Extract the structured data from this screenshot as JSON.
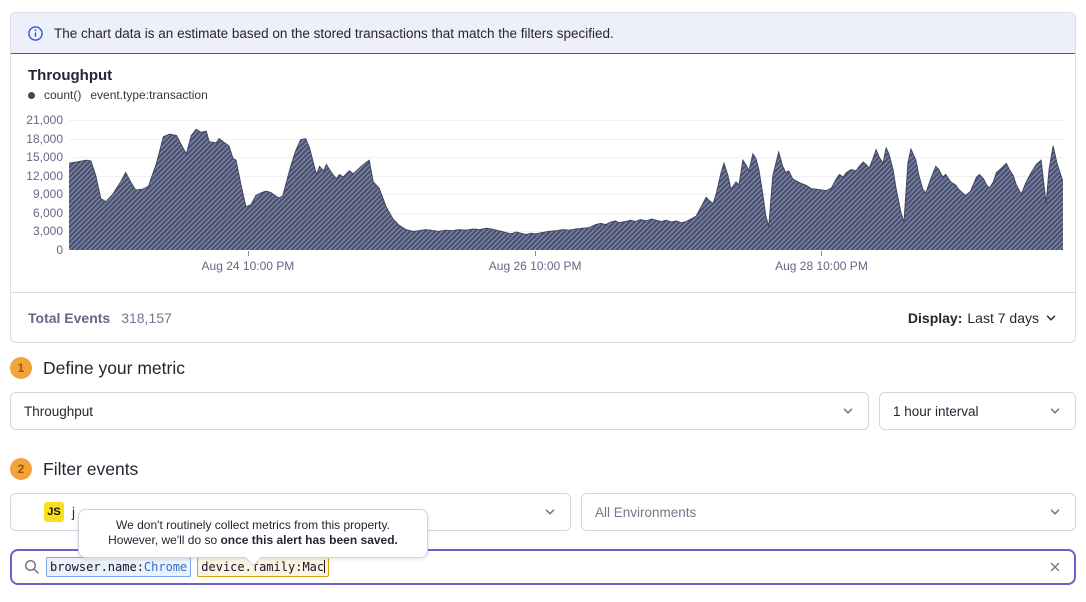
{
  "banner": {
    "text": "The chart data is an estimate based on the stored transactions that match the filters specified."
  },
  "chart_panel": {
    "title": "Throughput",
    "legend": {
      "series_label": "count()",
      "query_label": "event.type:transaction"
    },
    "footer": {
      "total_events_label": "Total Events",
      "total_events_value": "318,157",
      "display_label": "Display:",
      "display_value": "Last 7 days"
    }
  },
  "chart_data": {
    "type": "area",
    "title": "Throughput",
    "series_name": "count() event.type:transaction",
    "hatched": true,
    "grid": true,
    "ylim": [
      0,
      21000
    ],
    "fill_color": "#4a5375",
    "line_color": "#3f4763",
    "yticks": [
      {
        "value": 0,
        "label": "0"
      },
      {
        "value": 3000,
        "label": "3,000"
      },
      {
        "value": 6000,
        "label": "6,000"
      },
      {
        "value": 9000,
        "label": "9,000"
      },
      {
        "value": 12000,
        "label": "12,000"
      },
      {
        "value": 15000,
        "label": "15,000"
      },
      {
        "value": 18000,
        "label": "18,000"
      },
      {
        "value": 21000,
        "label": "21,000"
      }
    ],
    "xticks": [
      {
        "pos": 0.18,
        "label": "Aug 24 10:00 PM"
      },
      {
        "pos": 0.469,
        "label": "Aug 26 10:00 PM"
      },
      {
        "pos": 0.757,
        "label": "Aug 28 10:00 PM"
      }
    ],
    "series": [
      {
        "name": "count() event.type:transaction",
        "points": [
          [
            0,
            14000
          ],
          [
            0.007,
            14200
          ],
          [
            0.017,
            14500
          ],
          [
            0.022,
            14400
          ],
          [
            0.027,
            12000
          ],
          [
            0.032,
            8300
          ],
          [
            0.037,
            7800
          ],
          [
            0.044,
            9000
          ],
          [
            0.052,
            11000
          ],
          [
            0.057,
            12500
          ],
          [
            0.062,
            11000
          ],
          [
            0.067,
            9700
          ],
          [
            0.074,
            9800
          ],
          [
            0.08,
            10300
          ],
          [
            0.088,
            14000
          ],
          [
            0.095,
            18300
          ],
          [
            0.101,
            18700
          ],
          [
            0.108,
            18500
          ],
          [
            0.113,
            17000
          ],
          [
            0.118,
            15500
          ],
          [
            0.123,
            18500
          ],
          [
            0.128,
            19500
          ],
          [
            0.133,
            19000
          ],
          [
            0.138,
            19200
          ],
          [
            0.141,
            17500
          ],
          [
            0.148,
            17300
          ],
          [
            0.151,
            18000
          ],
          [
            0.155,
            17500
          ],
          [
            0.161,
            16800
          ],
          [
            0.165,
            14800
          ],
          [
            0.168,
            14500
          ],
          [
            0.173,
            10500
          ],
          [
            0.178,
            7000
          ],
          [
            0.183,
            7300
          ],
          [
            0.188,
            8800
          ],
          [
            0.193,
            9200
          ],
          [
            0.198,
            9500
          ],
          [
            0.203,
            9300
          ],
          [
            0.208,
            8700
          ],
          [
            0.211,
            8400
          ],
          [
            0.215,
            8700
          ],
          [
            0.223,
            13500
          ],
          [
            0.228,
            16000
          ],
          [
            0.233,
            17800
          ],
          [
            0.238,
            18000
          ],
          [
            0.242,
            16500
          ],
          [
            0.246,
            14000
          ],
          [
            0.249,
            12200
          ],
          [
            0.252,
            13500
          ],
          [
            0.256,
            12800
          ],
          [
            0.259,
            13800
          ],
          [
            0.264,
            12500
          ],
          [
            0.269,
            11500
          ],
          [
            0.272,
            12200
          ],
          [
            0.276,
            11800
          ],
          [
            0.282,
            12800
          ],
          [
            0.286,
            12300
          ],
          [
            0.292,
            13200
          ],
          [
            0.296,
            13800
          ],
          [
            0.302,
            14500
          ],
          [
            0.306,
            11000
          ],
          [
            0.312,
            10000
          ],
          [
            0.319,
            7000
          ],
          [
            0.326,
            5000
          ],
          [
            0.332,
            4000
          ],
          [
            0.339,
            3300
          ],
          [
            0.346,
            3000
          ],
          [
            0.352,
            3100
          ],
          [
            0.359,
            3300
          ],
          [
            0.364,
            3200
          ],
          [
            0.372,
            3000
          ],
          [
            0.379,
            3200
          ],
          [
            0.386,
            3100
          ],
          [
            0.392,
            3300
          ],
          [
            0.399,
            3200
          ],
          [
            0.407,
            3400
          ],
          [
            0.413,
            3300
          ],
          [
            0.42,
            3500
          ],
          [
            0.425,
            3400
          ],
          [
            0.43,
            3200
          ],
          [
            0.435,
            3000
          ],
          [
            0.44,
            2800
          ],
          [
            0.445,
            2600
          ],
          [
            0.45,
            2900
          ],
          [
            0.455,
            2700
          ],
          [
            0.46,
            2500
          ],
          [
            0.465,
            2700
          ],
          [
            0.47,
            2600
          ],
          [
            0.475,
            2800
          ],
          [
            0.483,
            3000
          ],
          [
            0.49,
            3100
          ],
          [
            0.497,
            3300
          ],
          [
            0.503,
            3200
          ],
          [
            0.51,
            3400
          ],
          [
            0.517,
            3500
          ],
          [
            0.523,
            3600
          ],
          [
            0.53,
            4100
          ],
          [
            0.535,
            4300
          ],
          [
            0.54,
            4100
          ],
          [
            0.545,
            4500
          ],
          [
            0.55,
            4700
          ],
          [
            0.553,
            4400
          ],
          [
            0.56,
            4600
          ],
          [
            0.565,
            4800
          ],
          [
            0.57,
            4600
          ],
          [
            0.575,
            4900
          ],
          [
            0.581,
            4700
          ],
          [
            0.586,
            5000
          ],
          [
            0.591,
            4800
          ],
          [
            0.596,
            4600
          ],
          [
            0.601,
            4800
          ],
          [
            0.606,
            4500
          ],
          [
            0.611,
            4700
          ],
          [
            0.616,
            4400
          ],
          [
            0.621,
            4600
          ],
          [
            0.626,
            5000
          ],
          [
            0.631,
            5500
          ],
          [
            0.636,
            7000
          ],
          [
            0.641,
            8500
          ],
          [
            0.644,
            8000
          ],
          [
            0.648,
            7500
          ],
          [
            0.651,
            9000
          ],
          [
            0.656,
            12500
          ],
          [
            0.659,
            14000
          ],
          [
            0.663,
            12000
          ],
          [
            0.666,
            9800
          ],
          [
            0.671,
            11000
          ],
          [
            0.674,
            10500
          ],
          [
            0.678,
            14500
          ],
          [
            0.681,
            13800
          ],
          [
            0.684,
            12800
          ],
          [
            0.688,
            15500
          ],
          [
            0.691,
            14800
          ],
          [
            0.694,
            13000
          ],
          [
            0.698,
            9000
          ],
          [
            0.701,
            5500
          ],
          [
            0.704,
            3800
          ],
          [
            0.708,
            12000
          ],
          [
            0.714,
            15800
          ],
          [
            0.718,
            13500
          ],
          [
            0.721,
            12500
          ],
          [
            0.724,
            12800
          ],
          [
            0.728,
            11500
          ],
          [
            0.731,
            11200
          ],
          [
            0.736,
            10800
          ],
          [
            0.742,
            10400
          ],
          [
            0.747,
            9900
          ],
          [
            0.752,
            9800
          ],
          [
            0.757,
            9700
          ],
          [
            0.762,
            9600
          ],
          [
            0.767,
            10000
          ],
          [
            0.772,
            11500
          ],
          [
            0.775,
            12200
          ],
          [
            0.779,
            11800
          ],
          [
            0.782,
            12500
          ],
          [
            0.787,
            13000
          ],
          [
            0.792,
            12800
          ],
          [
            0.795,
            13500
          ],
          [
            0.799,
            14200
          ],
          [
            0.802,
            13800
          ],
          [
            0.805,
            13200
          ],
          [
            0.809,
            14800
          ],
          [
            0.812,
            16200
          ],
          [
            0.815,
            15000
          ],
          [
            0.819,
            14000
          ],
          [
            0.822,
            16500
          ],
          [
            0.825,
            15500
          ],
          [
            0.829,
            13000
          ],
          [
            0.832,
            10000
          ],
          [
            0.837,
            6000
          ],
          [
            0.84,
            4500
          ],
          [
            0.844,
            14000
          ],
          [
            0.847,
            16300
          ],
          [
            0.852,
            14500
          ],
          [
            0.855,
            12000
          ],
          [
            0.859,
            9800
          ],
          [
            0.862,
            9200
          ],
          [
            0.867,
            11500
          ],
          [
            0.872,
            13500
          ],
          [
            0.875,
            13000
          ],
          [
            0.879,
            11800
          ],
          [
            0.882,
            12200
          ],
          [
            0.887,
            11000
          ],
          [
            0.892,
            10500
          ],
          [
            0.895,
            9800
          ],
          [
            0.899,
            9200
          ],
          [
            0.902,
            8800
          ],
          [
            0.907,
            9500
          ],
          [
            0.913,
            11800
          ],
          [
            0.916,
            12200
          ],
          [
            0.92,
            11500
          ],
          [
            0.923,
            10500
          ],
          [
            0.926,
            10000
          ],
          [
            0.93,
            11000
          ],
          [
            0.933,
            12500
          ],
          [
            0.938,
            13200
          ],
          [
            0.943,
            14000
          ],
          [
            0.946,
            13000
          ],
          [
            0.95,
            12000
          ],
          [
            0.953,
            10500
          ],
          [
            0.958,
            9000
          ],
          [
            0.963,
            11000
          ],
          [
            0.968,
            12500
          ],
          [
            0.973,
            13800
          ],
          [
            0.978,
            14500
          ],
          [
            0.983,
            7500
          ],
          [
            0.986,
            13000
          ],
          [
            0.99,
            16800
          ],
          [
            0.994,
            14000
          ],
          [
            1,
            11000
          ]
        ]
      }
    ]
  },
  "sections": {
    "metric": {
      "step": "1",
      "heading": "Define your metric",
      "metric_select_value": "Throughput",
      "interval_select_value": "1 hour interval"
    },
    "filter": {
      "step": "2",
      "heading": "Filter events",
      "project_badge": "JS",
      "project_visible_label": "j",
      "environment_select_value": "All Environments"
    }
  },
  "tooltip": {
    "line1": "We don't routinely collect metrics from this property.",
    "line2_normal": "However, we'll do so ",
    "line2_bold": "once this alert has been saved."
  },
  "search": {
    "tokens": [
      {
        "key": "browser.name:",
        "value": "Chrome"
      },
      {
        "key": "device.family:",
        "value": "Mac"
      }
    ]
  },
  "colors": {
    "accent_purple": "#6c5fc7",
    "banner_blue": "#2b59cf",
    "step_amber": "#f2a43a",
    "chart_fill": "#4a5375",
    "token_blue_border": "#7aa7e8",
    "token_warn_border": "#d6a113"
  }
}
